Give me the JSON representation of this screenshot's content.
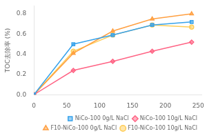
{
  "chart_data": {
    "type": "line",
    "x": [
      0,
      60,
      120,
      180,
      240
    ],
    "series": [
      {
        "name": "NiCo-100 0g/L NaCl",
        "values": [
          0.0,
          0.5,
          0.59,
          0.69,
          0.72
        ],
        "marker": "square"
      },
      {
        "name": "NiCo-100 10g/L NaCl",
        "values": [
          0.0,
          0.24,
          0.33,
          0.43,
          0.52
        ],
        "marker": "diamond"
      },
      {
        "name": "F10-NiCo-100 0g/L NaCl",
        "values": [
          0.0,
          0.41,
          0.63,
          0.75,
          0.8
        ],
        "marker": "triangle"
      },
      {
        "name": "F10-NiCo-100 10g/L NaCl",
        "values": [
          0.0,
          0.43,
          0.59,
          0.69,
          0.67
        ],
        "marker": "circle"
      }
    ],
    "y_label": "TOC去除率 (%)",
    "xlim": [
      0,
      255
    ],
    "ylim": [
      0.0,
      0.88
    ],
    "xticks": [
      0,
      50,
      100,
      150,
      200,
      250
    ],
    "yticks": [
      {
        "value": 0.0,
        "label": "0.0"
      },
      0.2,
      0.4,
      0.6,
      0.8
    ],
    "legend": "lower right",
    "grid": false
  }
}
